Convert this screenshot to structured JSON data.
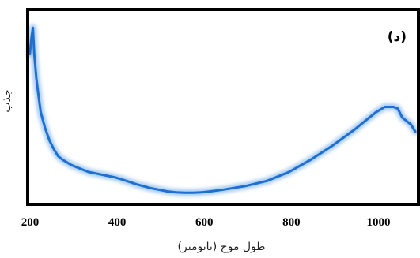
{
  "chart_data": {
    "type": "line",
    "panel_label": "(د)",
    "xlabel": "طول موج (نانومتر)",
    "ylabel": "جذب",
    "xlim": [
      200,
      1090
    ],
    "x_ticks": [
      200,
      400,
      600,
      800,
      1000
    ],
    "y_tick_labels": [],
    "grid": false,
    "legend": "none",
    "line_color": "#1f6fd0",
    "glow_color": "#a9cdf2",
    "series": [
      {
        "x": [
          205,
          208,
          212,
          215,
          220,
          225,
          230,
          240,
          250,
          260,
          270,
          280,
          300,
          320,
          340,
          360,
          380,
          400,
          420,
          450,
          480,
          500,
          520,
          540,
          560,
          580,
          600,
          620,
          650,
          700,
          750,
          800,
          850,
          900,
          950,
          980,
          1000,
          1020,
          1040,
          1050,
          1060,
          1070,
          1080,
          1090
        ],
        "y": [
          0.8,
          0.88,
          0.95,
          0.8,
          0.66,
          0.56,
          0.47,
          0.38,
          0.31,
          0.26,
          0.22,
          0.2,
          0.17,
          0.15,
          0.13,
          0.12,
          0.11,
          0.1,
          0.085,
          0.06,
          0.04,
          0.03,
          0.02,
          0.015,
          0.012,
          0.012,
          0.015,
          0.02,
          0.03,
          0.05,
          0.08,
          0.13,
          0.2,
          0.28,
          0.37,
          0.43,
          0.47,
          0.5,
          0.5,
          0.49,
          0.44,
          0.42,
          0.4,
          0.36
        ]
      }
    ]
  }
}
